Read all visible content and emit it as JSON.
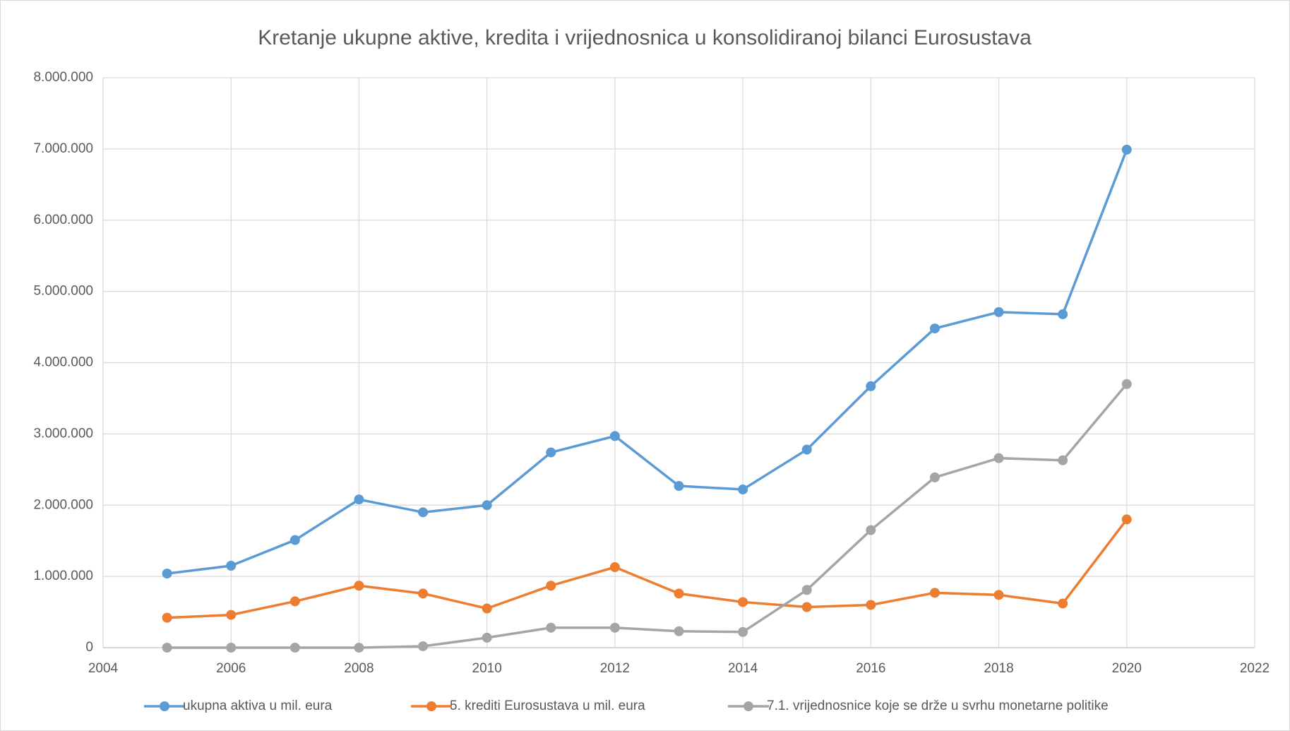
{
  "chart_data": {
    "type": "line",
    "title": "Kretanje ukupne aktive, kredita i vrijednosnica u konsolidiranoj bilanci Eurosustava",
    "x": [
      2005,
      2006,
      2007,
      2008,
      2009,
      2010,
      2011,
      2012,
      2013,
      2014,
      2015,
      2016,
      2017,
      2018,
      2019,
      2020
    ],
    "series": [
      {
        "name": "ukupna aktiva u mil. eura",
        "color": "#5b9bd5",
        "values": [
          1040000,
          1150000,
          1510000,
          2080000,
          1900000,
          2000000,
          2740000,
          2970000,
          2270000,
          2220000,
          2780000,
          3670000,
          4480000,
          4710000,
          4680000,
          6990000
        ]
      },
      {
        "name": "5. krediti Eurosustava u mil. eura",
        "color": "#ed7d31",
        "values": [
          420000,
          460000,
          650000,
          870000,
          760000,
          550000,
          870000,
          1130000,
          760000,
          640000,
          570000,
          600000,
          770000,
          740000,
          620000,
          1800000
        ]
      },
      {
        "name": "7.1. vrijednosnice koje se drže u svrhu monetarne politike",
        "color": "#a5a5a5",
        "values": [
          0,
          0,
          0,
          0,
          20000,
          140000,
          280000,
          280000,
          230000,
          220000,
          810000,
          1650000,
          2390000,
          2660000,
          2630000,
          3700000
        ]
      }
    ],
    "xlim": [
      2004,
      2022
    ],
    "xticks": [
      2004,
      2006,
      2008,
      2010,
      2012,
      2014,
      2016,
      2018,
      2020,
      2022
    ],
    "ylim": [
      0,
      8000000
    ],
    "yticks": [
      0,
      {
        "value": 1000000,
        "label": "1.000.000"
      },
      {
        "value": 2000000,
        "label": "2.000.000"
      },
      {
        "value": 3000000,
        "label": "3.000.000"
      },
      {
        "value": 4000000,
        "label": "4.000.000"
      },
      {
        "value": 5000000,
        "label": "5.000.000"
      },
      {
        "value": 6000000,
        "label": "6.000.000"
      },
      {
        "value": 7000000,
        "label": "7.000.000"
      },
      {
        "value": 8000000,
        "label": "8.000.000"
      }
    ],
    "grid": true,
    "legend": "bottom"
  }
}
